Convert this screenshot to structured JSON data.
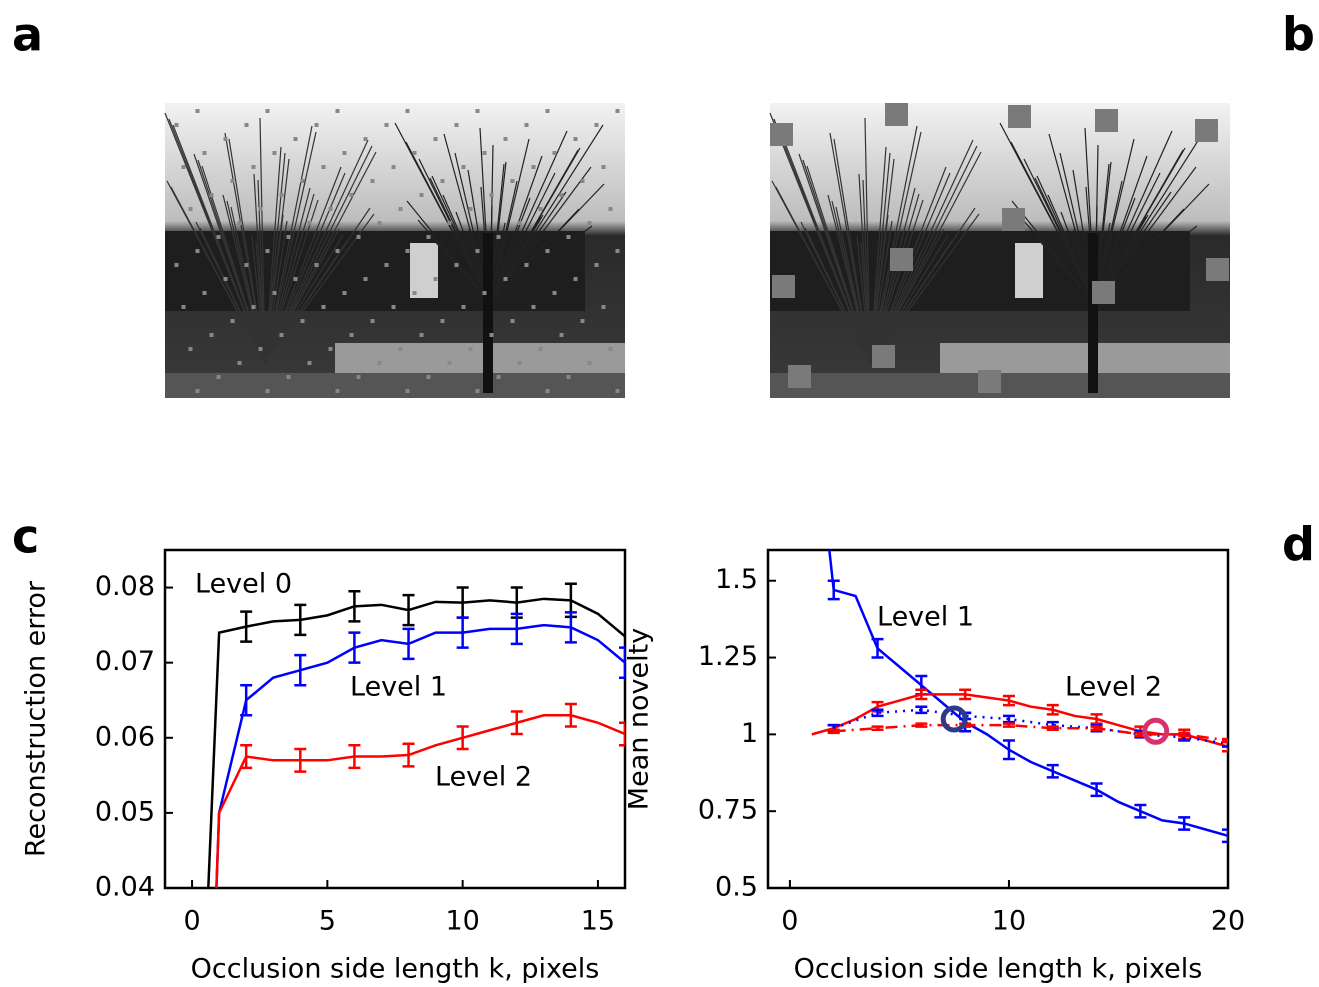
{
  "panel_labels": [
    "a",
    "b",
    "c",
    "d"
  ],
  "chart_data": [
    {
      "type": "line",
      "x_label": "Occlusion side length k, pixels",
      "y_label": "Reconstruction error",
      "xlim": [
        -1,
        16
      ],
      "ylim": [
        0.04,
        0.085
      ],
      "xticks": [
        0,
        5,
        10,
        15
      ],
      "yticks": [
        0.04,
        0.05,
        0.06,
        0.07,
        0.08
      ],
      "series": [
        {
          "name": "Level 0",
          "color": "#000000",
          "style": "solid",
          "x": [
            0.6,
            1,
            2,
            3,
            4,
            5,
            6,
            7,
            8,
            9,
            10,
            11,
            12,
            13,
            14,
            15,
            16
          ],
          "values": [
            0.04,
            0.074,
            0.0748,
            0.0755,
            0.0757,
            0.0763,
            0.0775,
            0.0777,
            0.077,
            0.0781,
            0.078,
            0.0783,
            0.078,
            0.0785,
            0.0783,
            0.0765,
            0.0735
          ],
          "errors": [
            null,
            null,
            0.002,
            null,
            0.002,
            null,
            0.002,
            null,
            0.002,
            null,
            0.002,
            null,
            0.002,
            null,
            0.0022,
            null,
            null
          ]
        },
        {
          "name": "Level 1",
          "color": "#0000ff",
          "style": "solid",
          "x": [
            0.9,
            1,
            2,
            3,
            4,
            5,
            6,
            7,
            8,
            9,
            10,
            11,
            12,
            13,
            14,
            15,
            16
          ],
          "values": [
            0.04,
            0.05,
            0.065,
            0.068,
            0.069,
            0.07,
            0.072,
            0.073,
            0.0725,
            0.074,
            0.074,
            0.0745,
            0.0745,
            0.075,
            0.0747,
            0.073,
            0.07
          ],
          "errors": [
            null,
            null,
            0.002,
            null,
            0.002,
            null,
            0.002,
            null,
            0.002,
            null,
            0.002,
            null,
            0.002,
            null,
            0.002,
            null,
            0.002
          ]
        },
        {
          "name": "Level 2",
          "color": "#ff0000",
          "style": "solid",
          "x": [
            0.9,
            1,
            2,
            3,
            4,
            5,
            6,
            7,
            8,
            9,
            10,
            11,
            12,
            13,
            14,
            15,
            16
          ],
          "values": [
            0.04,
            0.05,
            0.0575,
            0.057,
            0.057,
            0.057,
            0.0575,
            0.0575,
            0.0577,
            0.059,
            0.06,
            0.061,
            0.062,
            0.063,
            0.063,
            0.062,
            0.0605
          ],
          "errors": [
            null,
            null,
            0.0015,
            null,
            0.0015,
            null,
            0.0015,
            null,
            0.0015,
            null,
            0.0015,
            null,
            0.0015,
            null,
            0.0015,
            null,
            0.0015
          ]
        }
      ]
    },
    {
      "type": "line",
      "x_label": "Occlusion side length k, pixels",
      "y_label": "Mean novelty",
      "xlim": [
        -1,
        20
      ],
      "ylim": [
        0.5,
        1.6
      ],
      "xticks": [
        0,
        10,
        20
      ],
      "yticks": [
        0.5,
        0.75,
        1,
        1.25,
        1.5
      ],
      "series": [
        {
          "name": "Level 1",
          "color": "#0000ff",
          "style": "solid",
          "x": [
            1.8,
            2,
            3,
            4,
            5,
            6,
            7,
            8,
            9,
            10,
            11,
            12,
            13,
            14,
            15,
            16,
            17,
            18,
            19,
            20
          ],
          "values": [
            1.6,
            1.47,
            1.45,
            1.28,
            1.22,
            1.16,
            1.1,
            1.04,
            1.0,
            0.95,
            0.91,
            0.88,
            0.85,
            0.82,
            0.78,
            0.75,
            0.72,
            0.71,
            0.69,
            0.67
          ],
          "errors": [
            null,
            0.03,
            null,
            0.03,
            null,
            0.03,
            null,
            0.03,
            null,
            0.03,
            null,
            0.02,
            null,
            0.02,
            null,
            0.02,
            null,
            0.02,
            null,
            0.02
          ]
        },
        {
          "name": "Level 2",
          "color": "#ff0000",
          "style": "solid",
          "x": [
            1,
            2,
            3,
            4,
            5,
            6,
            7,
            8,
            9,
            10,
            11,
            12,
            13,
            14,
            15,
            16,
            17,
            18,
            19,
            20
          ],
          "values": [
            1.0,
            1.02,
            1.05,
            1.09,
            1.11,
            1.13,
            1.13,
            1.13,
            1.12,
            1.11,
            1.09,
            1.08,
            1.06,
            1.05,
            1.03,
            1.01,
            1.0,
            1.0,
            0.98,
            0.96
          ],
          "errors": [
            null,
            0.01,
            null,
            0.015,
            null,
            0.015,
            null,
            0.015,
            null,
            0.015,
            null,
            0.015,
            null,
            0.015,
            null,
            0.015,
            null,
            0.015,
            null,
            0.015
          ]
        },
        {
          "color": "#0000ff",
          "style": "dotted",
          "x": [
            2,
            4,
            6,
            8,
            10,
            12,
            14,
            16,
            18,
            20
          ],
          "values": [
            1.02,
            1.07,
            1.08,
            1.06,
            1.05,
            1.03,
            1.02,
            1.0,
            0.99,
            0.97
          ],
          "errors": [
            0.01,
            0.01,
            0.01,
            0.01,
            0.01,
            0.01,
            0.01,
            0.01,
            0.01,
            0.01
          ]
        },
        {
          "color": "#ff0000",
          "style": "dashdot",
          "x": [
            2,
            4,
            6,
            8,
            10,
            12,
            14,
            16,
            18,
            20
          ],
          "values": [
            1.01,
            1.02,
            1.03,
            1.03,
            1.03,
            1.02,
            1.02,
            1.0,
            1.0,
            0.98
          ],
          "errors": [
            0.005,
            0.005,
            0.005,
            0.005,
            0.005,
            0.005,
            0.005,
            0.005,
            0.005,
            0.005
          ]
        }
      ],
      "highlights": [
        {
          "x": 7.5,
          "y": 1.05,
          "color": "#2b3a8c"
        },
        {
          "x": 16.7,
          "y": 1.01,
          "color": "#d6336c"
        }
      ]
    }
  ]
}
